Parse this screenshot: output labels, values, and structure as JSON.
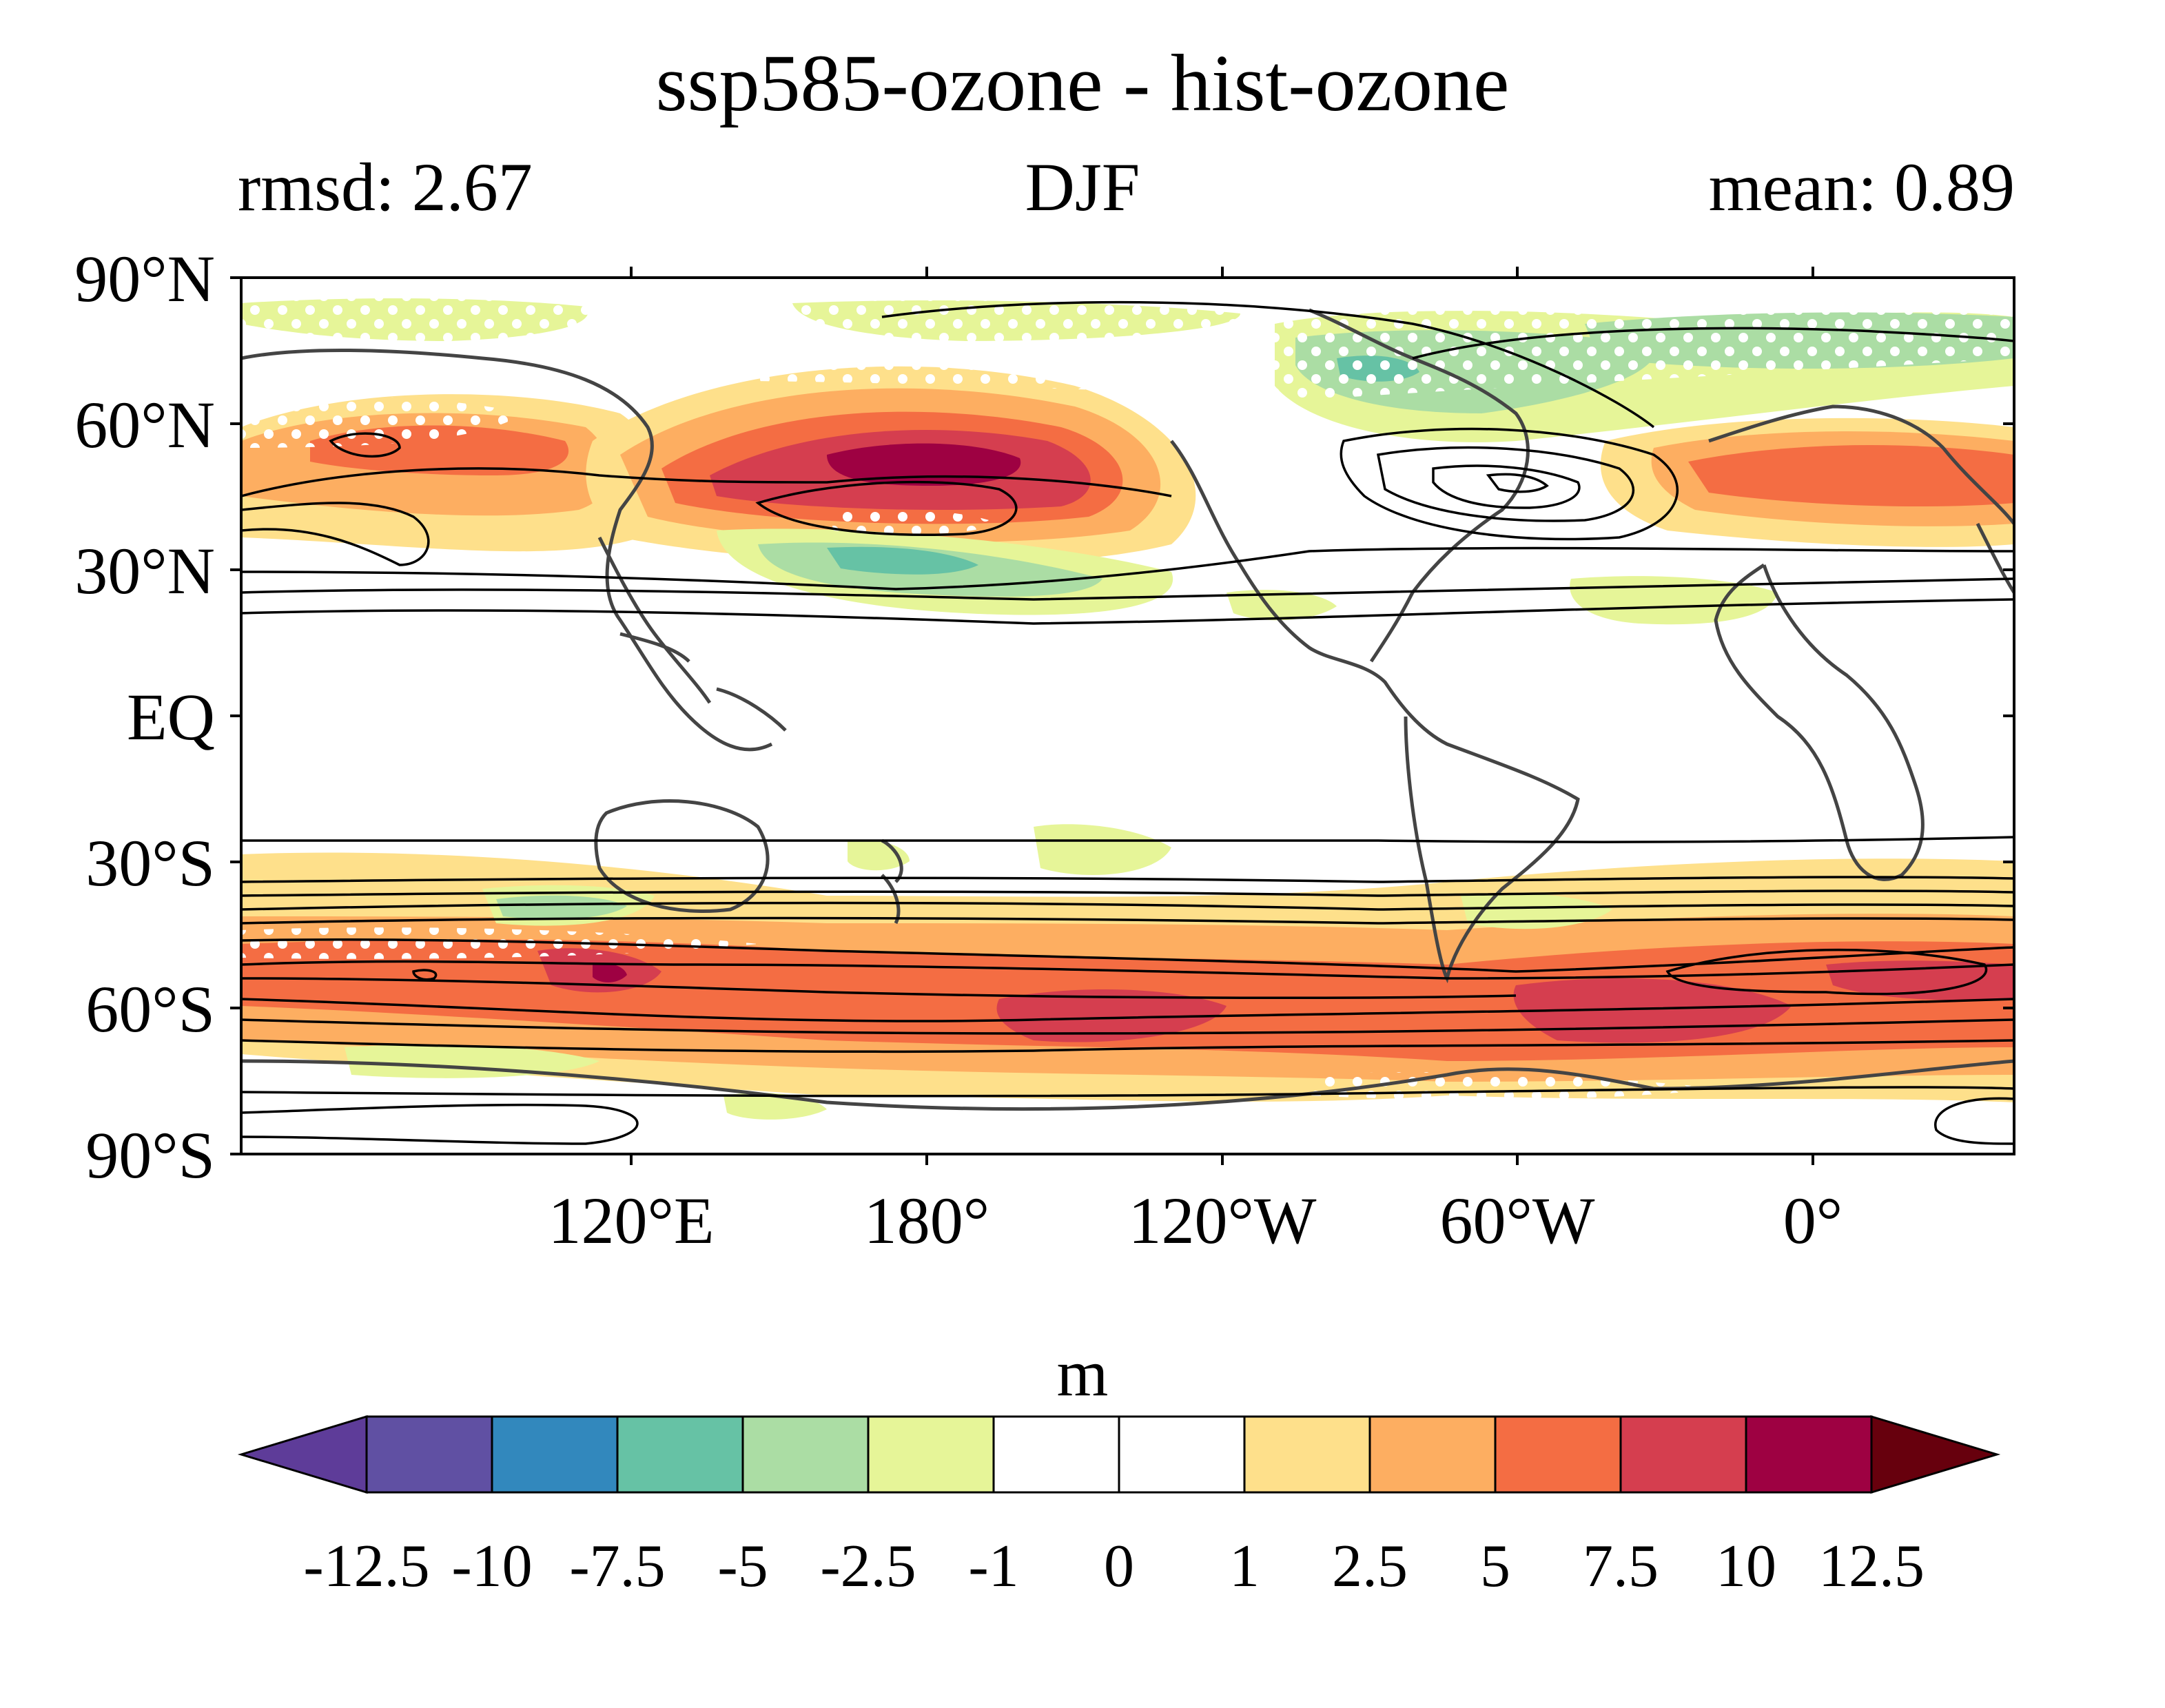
{
  "header": {
    "title": "ssp585-ozone - hist-ozone",
    "left_subtitle": "rmsd: 2.67",
    "center_subtitle": "DJF",
    "right_subtitle": "mean: 0.89"
  },
  "map": {
    "lat_labels": [
      "90°N",
      "60°N",
      "30°N",
      "EQ",
      "30°S",
      "60°S",
      "90°S"
    ],
    "lon_labels": [
      "120°E",
      "180°",
      "120°W",
      "60°W",
      "0°"
    ],
    "projection": "cylindrical equidistant, centered 140°W",
    "fill_colors": {
      "neg_1_to_2_5": "#e6f598",
      "neg_2_5_to_5": "#abdda4",
      "neg_5_to_7_5": "#66c2a5",
      "pos_1_to_2_5": "#fee08b",
      "pos_2_5_to_5": "#fdae61",
      "pos_5_to_7_5": "#f46d43",
      "pos_7_5_to_10": "#d53e4f",
      "pos_10_to_12_5": "#9e0142"
    },
    "stippling": "white dots",
    "contours": "black lines",
    "coastline_color": "#444444"
  },
  "colorbar": {
    "title": "m",
    "ticks": [
      "-12.5",
      "-10",
      "-7.5",
      "-5",
      "-2.5",
      "-1",
      "0",
      "1",
      "2.5",
      "5",
      "7.5",
      "10",
      "12.5"
    ],
    "colors": [
      "#5e3c99",
      "#6050a3",
      "#3288bd",
      "#66c2a5",
      "#abdda4",
      "#e6f598",
      "#ffffff",
      "#ffffff",
      "#fee08b",
      "#fdae61",
      "#f46d43",
      "#d53e4f",
      "#9e0142",
      "#67000d"
    ]
  }
}
